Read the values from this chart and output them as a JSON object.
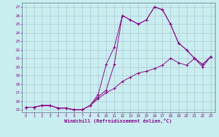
{
  "xlabel": "Windchill (Refroidissement éolien,°C)",
  "background_color": "#c8eef0",
  "line_color": "#880088",
  "grid_color": "#aabbcc",
  "xlim": [
    -0.5,
    23.5
  ],
  "ylim": [
    14.7,
    27.5
  ],
  "xticks": [
    0,
    1,
    2,
    3,
    4,
    5,
    6,
    7,
    8,
    9,
    10,
    11,
    12,
    13,
    14,
    15,
    16,
    17,
    18,
    19,
    20,
    21,
    22,
    23
  ],
  "yticks": [
    15,
    16,
    17,
    18,
    19,
    20,
    21,
    22,
    23,
    24,
    25,
    26,
    27
  ],
  "line1_x": [
    0,
    1,
    2,
    3,
    4,
    5,
    6,
    7,
    8,
    9,
    10,
    11,
    12,
    13,
    14,
    15,
    16,
    17,
    18,
    19,
    20,
    21,
    22,
    23
  ],
  "line1_y": [
    15.3,
    15.3,
    15.5,
    15.5,
    15.2,
    15.2,
    15.0,
    15.0,
    15.5,
    16.8,
    20.3,
    22.3,
    26.0,
    25.5,
    25.0,
    25.5,
    27.0,
    26.7,
    25.0,
    22.8,
    22.0,
    21.0,
    20.3,
    21.2
  ],
  "line2_x": [
    0,
    1,
    2,
    3,
    4,
    5,
    6,
    7,
    8,
    9,
    10,
    11,
    12,
    13,
    14,
    15,
    16,
    17,
    18,
    19,
    20,
    21,
    22,
    23
  ],
  "line2_y": [
    15.3,
    15.3,
    15.5,
    15.5,
    15.2,
    15.2,
    15.0,
    15.0,
    15.5,
    16.5,
    17.3,
    20.3,
    26.0,
    25.5,
    25.0,
    25.5,
    27.0,
    26.7,
    25.0,
    22.8,
    22.0,
    21.0,
    20.3,
    21.2
  ],
  "line3_x": [
    0,
    1,
    2,
    3,
    4,
    5,
    6,
    7,
    8,
    9,
    10,
    11,
    12,
    13,
    14,
    15,
    16,
    17,
    18,
    19,
    20,
    21,
    22,
    23
  ],
  "line3_y": [
    15.3,
    15.3,
    15.5,
    15.5,
    15.2,
    15.2,
    15.0,
    15.0,
    15.5,
    16.3,
    17.0,
    17.5,
    18.3,
    18.8,
    19.3,
    19.5,
    19.8,
    20.2,
    21.0,
    20.5,
    20.2,
    21.0,
    20.0,
    21.2
  ]
}
